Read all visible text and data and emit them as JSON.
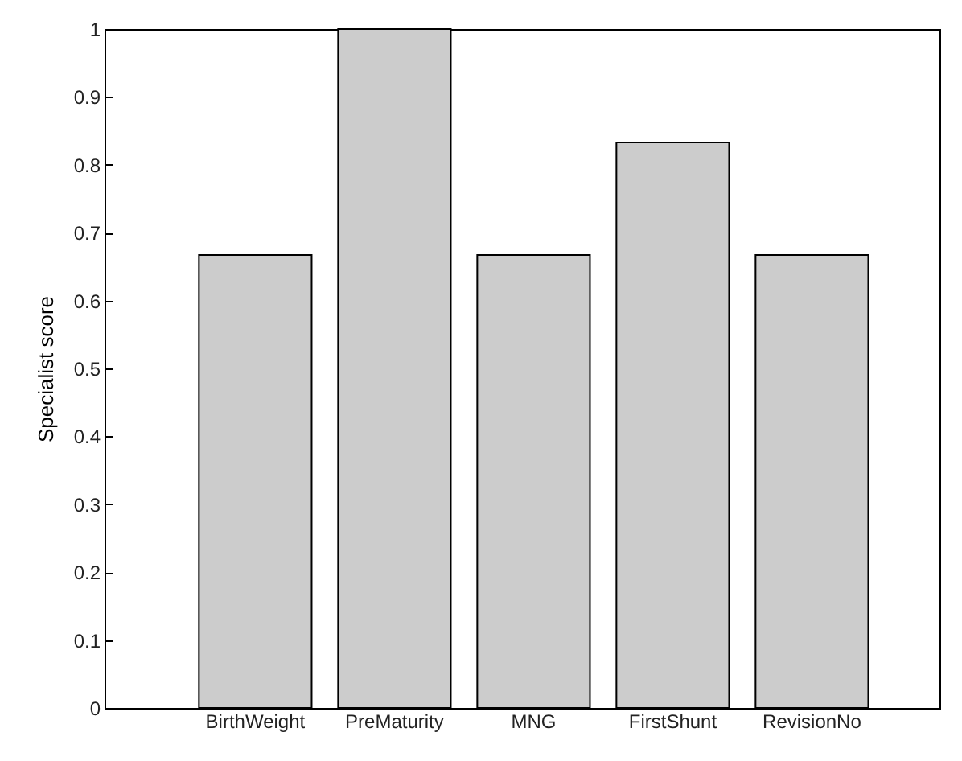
{
  "chart_data": {
    "type": "bar",
    "ylabel": "Specialist score",
    "categories": [
      "BirthWeight",
      "PreMaturity",
      "MNG",
      "FirstShunt",
      "RevisionNo"
    ],
    "values": [
      0.667,
      1,
      0.667,
      0.833,
      0.667
    ],
    "color": "#cccccc",
    "ylim": [
      0,
      1
    ],
    "yticks": [
      0,
      0.1,
      0.2,
      0.3,
      0.4,
      0.5,
      0.6,
      0.7,
      0.8,
      0.9,
      1
    ],
    "grid": false
  }
}
